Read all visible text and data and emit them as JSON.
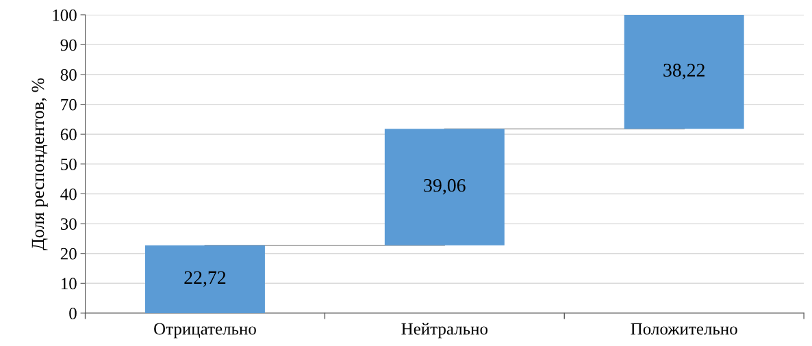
{
  "chart_data": {
    "type": "bar",
    "ylabel": "Доля респондентов, %",
    "categories": [
      "Отрицательно",
      "Нейтрально",
      "Положительно"
    ],
    "series": [
      {
        "color": "#5b9bd5",
        "values": [
          22.72,
          39.06,
          38.22
        ],
        "base": [
          0,
          22.72,
          61.78
        ],
        "value_labels": [
          "22,72",
          "39,06",
          "38,22"
        ]
      },
      {
        "type": "step",
        "color": "#a6a6a6",
        "values": [
          22.72,
          61.78,
          61.78
        ]
      }
    ],
    "ylim": [
      0,
      100
    ],
    "yticks": [
      0,
      10,
      20,
      30,
      40,
      50,
      60,
      70,
      80,
      90,
      100
    ],
    "grid": "y",
    "legend": false
  }
}
